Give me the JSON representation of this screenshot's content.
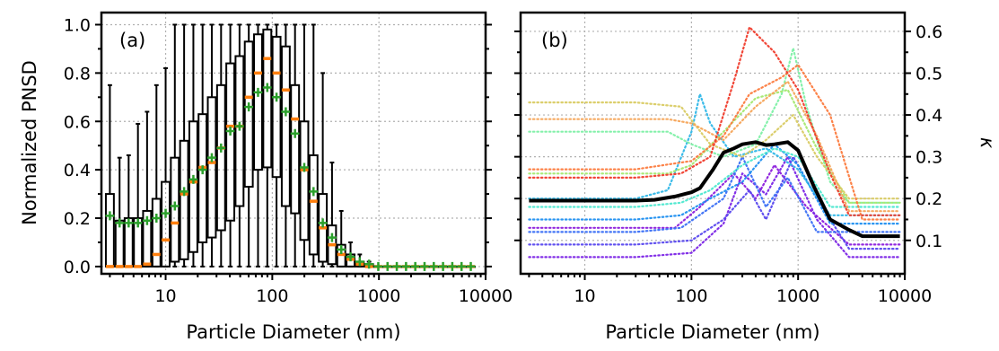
{
  "chart_data": [
    {
      "panel": "(a)",
      "type": "box",
      "xlabel": "Particle Diameter (nm)",
      "ylabel": "Normalized PNSD",
      "xscale": "log",
      "xlim": [
        2.5,
        10000
      ],
      "ylim": [
        -0.03,
        1.05
      ],
      "xticks": [
        10,
        100,
        1000,
        10000
      ],
      "xtick_labels": [
        "10",
        "100",
        "1000",
        "10000"
      ],
      "yticks": [
        0.0,
        0.2,
        0.4,
        0.6,
        0.8,
        1.0
      ],
      "ytick_labels": [
        "0.0",
        "0.2",
        "0.4",
        "0.6",
        "0.8",
        "1.0"
      ],
      "grid": true,
      "colors": {
        "box": "#000000",
        "median": "#ff7f0e",
        "mean": "#2ca02c"
      },
      "boxes": [
        {
          "x": 3.0,
          "whislo": 0.0,
          "q1": 0.0,
          "median": 0.0,
          "q3": 0.3,
          "whishi": 0.75,
          "mean": 0.21
        },
        {
          "x": 3.7,
          "whislo": 0.0,
          "q1": 0.0,
          "median": 0.0,
          "q3": 0.19,
          "whishi": 0.45,
          "mean": 0.18
        },
        {
          "x": 4.5,
          "whislo": 0.0,
          "q1": 0.0,
          "median": 0.0,
          "q3": 0.2,
          "whishi": 0.46,
          "mean": 0.18
        },
        {
          "x": 5.5,
          "whislo": 0.0,
          "q1": 0.0,
          "median": 0.0,
          "q3": 0.2,
          "whishi": 0.59,
          "mean": 0.18
        },
        {
          "x": 6.7,
          "whislo": 0.0,
          "q1": 0.0,
          "median": 0.01,
          "q3": 0.23,
          "whishi": 0.64,
          "mean": 0.19
        },
        {
          "x": 8.2,
          "whislo": 0.0,
          "q1": 0.0,
          "median": 0.05,
          "q3": 0.28,
          "whishi": 0.75,
          "mean": 0.2
        },
        {
          "x": 10.0,
          "whislo": 0.0,
          "q1": 0.0,
          "median": 0.11,
          "q3": 0.35,
          "whishi": 0.82,
          "mean": 0.22
        },
        {
          "x": 12.2,
          "whislo": 0.0,
          "q1": 0.02,
          "median": 0.18,
          "q3": 0.45,
          "whishi": 1.0,
          "mean": 0.25
        },
        {
          "x": 14.9,
          "whislo": 0.0,
          "q1": 0.03,
          "median": 0.3,
          "q3": 0.52,
          "whishi": 1.0,
          "mean": 0.31
        },
        {
          "x": 18.2,
          "whislo": 0.0,
          "q1": 0.06,
          "median": 0.35,
          "q3": 0.6,
          "whishi": 1.0,
          "mean": 0.36
        },
        {
          "x": 22.2,
          "whislo": 0.0,
          "q1": 0.1,
          "median": 0.41,
          "q3": 0.63,
          "whishi": 1.0,
          "mean": 0.4
        },
        {
          "x": 27.1,
          "whislo": 0.0,
          "q1": 0.12,
          "median": 0.43,
          "q3": 0.7,
          "whishi": 1.0,
          "mean": 0.45
        },
        {
          "x": 33.1,
          "whislo": 0.0,
          "q1": 0.15,
          "median": 0.49,
          "q3": 0.75,
          "whishi": 1.0,
          "mean": 0.49
        },
        {
          "x": 40.4,
          "whislo": 0.0,
          "q1": 0.19,
          "median": 0.58,
          "q3": 0.84,
          "whishi": 1.0,
          "mean": 0.56
        },
        {
          "x": 49.3,
          "whislo": 0.0,
          "q1": 0.25,
          "median": 0.58,
          "q3": 0.87,
          "whishi": 1.0,
          "mean": 0.58
        },
        {
          "x": 60.2,
          "whislo": 0.0,
          "q1": 0.33,
          "median": 0.7,
          "q3": 0.93,
          "whishi": 1.0,
          "mean": 0.66
        },
        {
          "x": 73.5,
          "whislo": 0.0,
          "q1": 0.4,
          "median": 0.8,
          "q3": 0.96,
          "whishi": 1.0,
          "mean": 0.72
        },
        {
          "x": 89.8,
          "whislo": 0.0,
          "q1": 0.41,
          "median": 0.86,
          "q3": 0.98,
          "whishi": 1.0,
          "mean": 0.74
        },
        {
          "x": 109.6,
          "whislo": 0.0,
          "q1": 0.37,
          "median": 0.8,
          "q3": 0.95,
          "whishi": 1.0,
          "mean": 0.7
        },
        {
          "x": 133.8,
          "whislo": 0.0,
          "q1": 0.25,
          "median": 0.73,
          "q3": 0.91,
          "whishi": 1.0,
          "mean": 0.64
        },
        {
          "x": 163.4,
          "whislo": 0.0,
          "q1": 0.22,
          "median": 0.61,
          "q3": 0.75,
          "whishi": 1.0,
          "mean": 0.55
        },
        {
          "x": 199.5,
          "whislo": 0.0,
          "q1": 0.11,
          "median": 0.4,
          "q3": 0.6,
          "whishi": 1.0,
          "mean": 0.41
        },
        {
          "x": 243.6,
          "whislo": 0.0,
          "q1": 0.05,
          "median": 0.27,
          "q3": 0.46,
          "whishi": 1.0,
          "mean": 0.31
        },
        {
          "x": 297.5,
          "whislo": 0.0,
          "q1": 0.02,
          "median": 0.16,
          "q3": 0.3,
          "whishi": 0.8,
          "mean": 0.18
        },
        {
          "x": 363.2,
          "whislo": 0.0,
          "q1": 0.01,
          "median": 0.09,
          "q3": 0.17,
          "whishi": 0.43,
          "mean": 0.12
        },
        {
          "x": 443.5,
          "whislo": 0.0,
          "q1": 0.0,
          "median": 0.05,
          "q3": 0.09,
          "whishi": 0.23,
          "mean": 0.07
        },
        {
          "x": 541.6,
          "whislo": 0.0,
          "q1": 0.0,
          "median": 0.03,
          "q3": 0.05,
          "whishi": 0.1,
          "mean": 0.04
        },
        {
          "x": 661.3,
          "whislo": 0.0,
          "q1": 0.0,
          "median": 0.01,
          "q3": 0.02,
          "whishi": 0.05,
          "mean": 0.02
        },
        {
          "x": 807.5,
          "whislo": 0.0,
          "q1": 0.0,
          "median": 0.0,
          "q3": 0.01,
          "whishi": 0.02,
          "mean": 0.01
        },
        {
          "x": 986.0,
          "whislo": 0.0,
          "q1": 0.0,
          "median": 0.0,
          "q3": 0.0,
          "whishi": 0.0,
          "mean": 0.0
        },
        {
          "x": 1204.0,
          "whislo": 0.0,
          "q1": 0.0,
          "median": 0.0,
          "q3": 0.0,
          "whishi": 0.0,
          "mean": 0.0
        },
        {
          "x": 1470.2,
          "whislo": 0.0,
          "q1": 0.0,
          "median": 0.0,
          "q3": 0.0,
          "whishi": 0.0,
          "mean": 0.0
        },
        {
          "x": 1795.2,
          "whislo": 0.0,
          "q1": 0.0,
          "median": 0.0,
          "q3": 0.0,
          "whishi": 0.0,
          "mean": 0.0
        },
        {
          "x": 2192.1,
          "whislo": 0.0,
          "q1": 0.0,
          "median": 0.0,
          "q3": 0.0,
          "whishi": 0.0,
          "mean": 0.0
        },
        {
          "x": 2676.7,
          "whislo": 0.0,
          "q1": 0.0,
          "median": 0.0,
          "q3": 0.0,
          "whishi": 0.0,
          "mean": 0.0
        },
        {
          "x": 3268.5,
          "whislo": 0.0,
          "q1": 0.0,
          "median": 0.0,
          "q3": 0.0,
          "whishi": 0.0,
          "mean": 0.0
        },
        {
          "x": 3991.1,
          "whislo": 0.0,
          "q1": 0.0,
          "median": 0.0,
          "q3": 0.0,
          "whishi": 0.0,
          "mean": 0.0
        },
        {
          "x": 4873.4,
          "whislo": 0.0,
          "q1": 0.0,
          "median": 0.0,
          "q3": 0.0,
          "whishi": 0.0,
          "mean": 0.0
        },
        {
          "x": 5950.9,
          "whislo": 0.0,
          "q1": 0.0,
          "median": 0.0,
          "q3": 0.0,
          "whishi": 0.0,
          "mean": 0.0
        },
        {
          "x": 7266.5,
          "whislo": 0.0,
          "q1": 0.0,
          "median": 0.0,
          "q3": 0.0,
          "whishi": 0.0,
          "mean": 0.0
        }
      ]
    },
    {
      "panel": "(b)",
      "type": "line",
      "xlabel": "Particle Diameter (nm)",
      "ylabel": "κ",
      "ylabel_side": "right",
      "xscale": "log",
      "xlim": [
        2.5,
        10000
      ],
      "ylim": [
        0.02,
        0.645
      ],
      "xticks": [
        10,
        100,
        1000,
        10000
      ],
      "xtick_labels": [
        "10",
        "100",
        "1000",
        "10000"
      ],
      "yticks": [
        0.1,
        0.2,
        0.3,
        0.4,
        0.5,
        0.6
      ],
      "ytick_labels": [
        "0.1",
        "0.2",
        "0.3",
        "0.4",
        "0.5",
        "0.6"
      ],
      "grid": true,
      "series": [
        {
          "color": "#000000",
          "style": "solid",
          "x": [
            3,
            30,
            45,
            70,
            100,
            120,
            160,
            200,
            250,
            300,
            400,
            500,
            600,
            800,
            1000,
            1400,
            2000,
            3000,
            4000,
            6000,
            9000
          ],
          "values": [
            0.195,
            0.195,
            0.197,
            0.205,
            0.215,
            0.225,
            0.27,
            0.31,
            0.32,
            0.33,
            0.335,
            0.328,
            0.33,
            0.335,
            0.315,
            0.23,
            0.15,
            0.125,
            0.11,
            0.11,
            0.11
          ]
        },
        {
          "color": "#f03c2c",
          "style": "dotted",
          "x": [
            3,
            30,
            80,
            150,
            250,
            350,
            600,
            1000,
            2000,
            3000,
            9000
          ],
          "values": [
            0.25,
            0.25,
            0.26,
            0.3,
            0.48,
            0.61,
            0.55,
            0.46,
            0.26,
            0.16,
            0.16
          ]
        },
        {
          "color": "#fc7b3e",
          "style": "dotted",
          "x": [
            3,
            30,
            100,
            200,
            350,
            700,
            1000,
            2000,
            4000,
            9000
          ],
          "values": [
            0.27,
            0.27,
            0.29,
            0.35,
            0.45,
            0.49,
            0.52,
            0.4,
            0.15,
            0.15
          ]
        },
        {
          "color": "#f6a55a",
          "style": "dotted",
          "x": [
            3,
            30,
            60,
            100,
            200,
            400,
            800,
            1500,
            3000,
            9000
          ],
          "values": [
            0.39,
            0.39,
            0.39,
            0.38,
            0.34,
            0.42,
            0.48,
            0.35,
            0.17,
            0.17
          ]
        },
        {
          "color": "#d9cb63",
          "style": "dotted",
          "x": [
            3,
            30,
            80,
            150,
            300,
            500,
            900,
            1500,
            3000,
            9000
          ],
          "values": [
            0.43,
            0.43,
            0.42,
            0.33,
            0.3,
            0.34,
            0.4,
            0.3,
            0.2,
            0.2
          ]
        },
        {
          "color": "#a4e870",
          "style": "dotted",
          "x": [
            3,
            30,
            60,
            100,
            200,
            400,
            800,
            1500,
            3000,
            9000
          ],
          "values": [
            0.26,
            0.26,
            0.26,
            0.28,
            0.36,
            0.44,
            0.46,
            0.32,
            0.19,
            0.19
          ]
        },
        {
          "color": "#7ef0a6",
          "style": "dotted",
          "x": [
            3,
            30,
            60,
            100,
            200,
            400,
            700,
            900,
            1200,
            2000,
            3000,
            9000
          ],
          "values": [
            0.36,
            0.36,
            0.36,
            0.33,
            0.3,
            0.33,
            0.45,
            0.56,
            0.42,
            0.24,
            0.19,
            0.19
          ]
        },
        {
          "color": "#4de8d0",
          "style": "dotted",
          "x": [
            3,
            30,
            80,
            150,
            300,
            600,
            1000,
            2000,
            9000
          ],
          "values": [
            0.18,
            0.18,
            0.19,
            0.22,
            0.28,
            0.32,
            0.3,
            0.18,
            0.18
          ]
        },
        {
          "color": "#2fb7e8",
          "style": "dotted",
          "x": [
            3,
            30,
            60,
            100,
            120,
            150,
            250,
            500,
            1000,
            2000,
            9000
          ],
          "values": [
            0.2,
            0.2,
            0.22,
            0.36,
            0.45,
            0.38,
            0.3,
            0.32,
            0.27,
            0.16,
            0.16
          ]
        },
        {
          "color": "#1f8ff0",
          "style": "dotted",
          "x": [
            3,
            30,
            80,
            150,
            300,
            600,
            1000,
            2000,
            9000
          ],
          "values": [
            0.15,
            0.15,
            0.16,
            0.2,
            0.24,
            0.33,
            0.28,
            0.14,
            0.14
          ]
        },
        {
          "color": "#3a6ff5",
          "style": "dotted",
          "x": [
            3,
            30,
            80,
            200,
            300,
            500,
            800,
            1500,
            9000
          ],
          "values": [
            0.12,
            0.12,
            0.13,
            0.2,
            0.3,
            0.18,
            0.25,
            0.12,
            0.12
          ]
        },
        {
          "color": "#5848ee",
          "style": "dotted",
          "x": [
            3,
            30,
            100,
            200,
            350,
            500,
            900,
            1500,
            3000,
            9000
          ],
          "values": [
            0.09,
            0.09,
            0.1,
            0.15,
            0.22,
            0.15,
            0.3,
            0.2,
            0.08,
            0.08
          ]
        },
        {
          "color": "#7b24e6",
          "style": "dotted",
          "x": [
            3,
            30,
            100,
            200,
            300,
            500,
            800,
            1500,
            3000,
            9000
          ],
          "values": [
            0.06,
            0.06,
            0.07,
            0.14,
            0.26,
            0.21,
            0.3,
            0.15,
            0.06,
            0.06
          ]
        },
        {
          "color": "#8c1edc",
          "style": "dotted",
          "x": [
            3,
            30,
            70,
            120,
            250,
            400,
            600,
            1200,
            3000,
            9000
          ],
          "values": [
            0.13,
            0.13,
            0.13,
            0.18,
            0.26,
            0.2,
            0.28,
            0.18,
            0.09,
            0.09
          ]
        }
      ]
    }
  ]
}
